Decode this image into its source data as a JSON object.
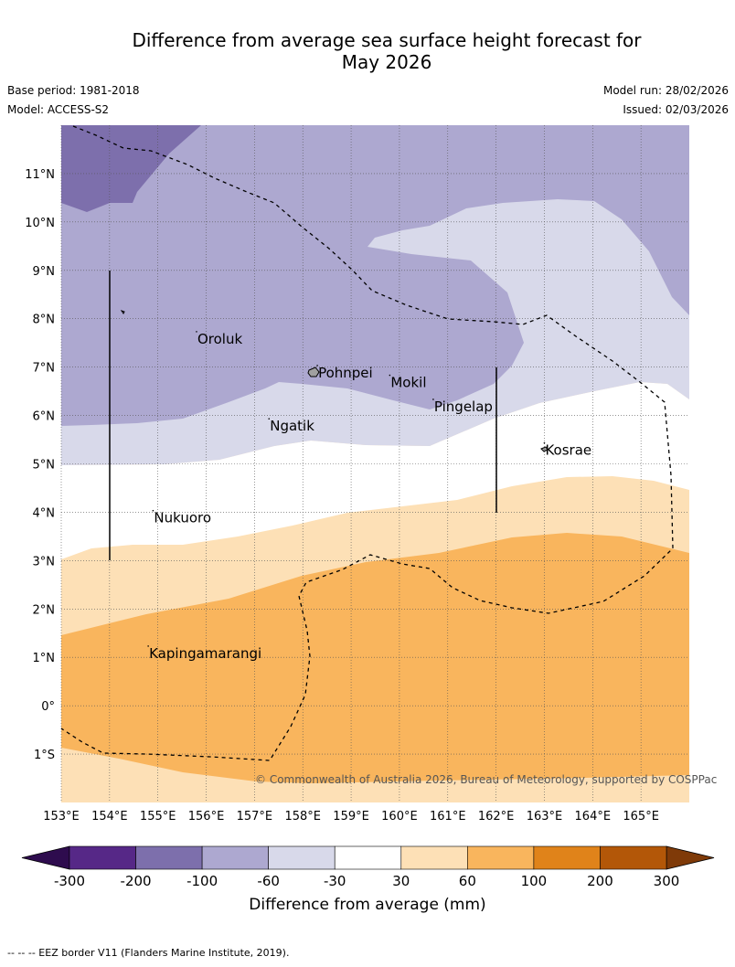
{
  "title_line1": "Difference from average sea surface height forecast for",
  "title_line2": "May 2026",
  "base_period": "Base period: 1981-2018",
  "model": "Model: ACCESS-S2",
  "model_run": "Model run: 28/02/2026",
  "issued": "Issued: 02/03/2026",
  "copyright": "© Commonwealth of Australia 2026, Bureau of Meteorology, supported by COSPPac",
  "footer": "--  --  -- EEZ border V11 (Flanders Marine Institute, 2019).",
  "lat_labels": [
    "11°N",
    "10°N",
    "9°N",
    "8°N",
    "7°N",
    "6°N",
    "5°N",
    "4°N",
    "3°N",
    "2°N",
    "1°N",
    "0°",
    "1°S"
  ],
  "lat_values": [
    11,
    10,
    9,
    8,
    7,
    6,
    5,
    4,
    3,
    2,
    1,
    0,
    -1
  ],
  "lon_labels": [
    "153°E",
    "154°E",
    "155°E",
    "156°E",
    "157°E",
    "158°E",
    "159°E",
    "160°E",
    "161°E",
    "162°E",
    "163°E",
    "164°E",
    "165°E"
  ],
  "lon_values": [
    153,
    154,
    155,
    156,
    157,
    158,
    159,
    160,
    161,
    162,
    163,
    164,
    165
  ],
  "places": [
    {
      "name": "Oroluk",
      "lon": 155.8,
      "lat": 7.6
    },
    {
      "name": "Pohnpei",
      "lon": 158.3,
      "lat": 6.9
    },
    {
      "name": "Mokil",
      "lon": 159.8,
      "lat": 6.7
    },
    {
      "name": "Pingelap",
      "lon": 160.7,
      "lat": 6.2
    },
    {
      "name": "Ngatik",
      "lon": 157.3,
      "lat": 5.8
    },
    {
      "name": "Kosrae",
      "lon": 163.0,
      "lat": 5.3
    },
    {
      "name": "Nukuoro",
      "lon": 154.9,
      "lat": 3.9
    },
    {
      "name": "Kapingamarangi",
      "lon": 154.8,
      "lat": 1.1
    }
  ],
  "colorbar": {
    "ticks": [
      "-300",
      "-200",
      "-100",
      "-60",
      "-30",
      "30",
      "60",
      "100",
      "200",
      "300"
    ],
    "colors": [
      "#562887",
      "#7d6fac",
      "#ada8d0",
      "#d8d9ea",
      "#ffffff",
      "#fde0b6",
      "#f9b55d",
      "#e0831a",
      "#b35708"
    ],
    "under_color": "#2e0c4e",
    "over_color": "#7f3a08",
    "label": "Difference from average (mm)"
  },
  "map_extent": {
    "lon_min": 153,
    "lon_max": 166,
    "lat_min": -2,
    "lat_max": 12
  }
}
